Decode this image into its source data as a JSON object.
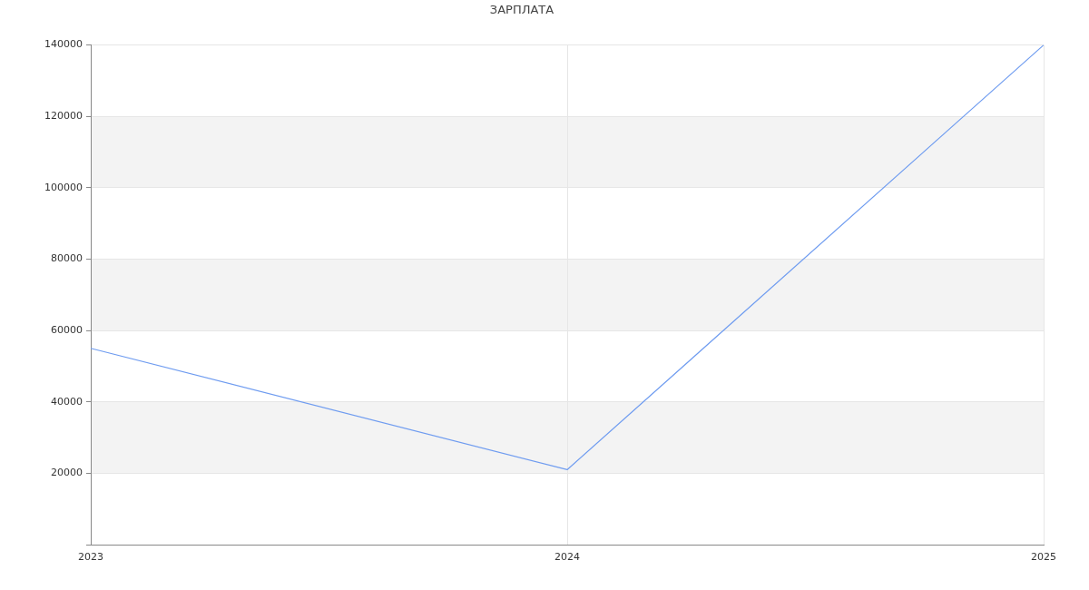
{
  "chart_data": {
    "type": "line",
    "title": "ЗАРПЛАТА",
    "categories": [
      "2023",
      "2024",
      "2025"
    ],
    "series": [
      {
        "color": "#6f9cf0",
        "values": [
          55000,
          21000,
          140000
        ]
      }
    ],
    "ylim": [
      0,
      140000
    ],
    "yticks": [
      {
        "value": 0,
        "label": null
      },
      20000,
      40000,
      60000,
      80000,
      100000,
      120000,
      140000
    ],
    "grid": true,
    "marker": "none",
    "bands": [
      {
        "axis": "y",
        "from": 20000,
        "to": 40000,
        "color": "#f3f3f3"
      },
      {
        "axis": "y",
        "from": 60000,
        "to": 80000,
        "color": "#f3f3f3"
      },
      {
        "axis": "y",
        "from": 100000,
        "to": 120000,
        "color": "#f3f3f3"
      }
    ]
  }
}
